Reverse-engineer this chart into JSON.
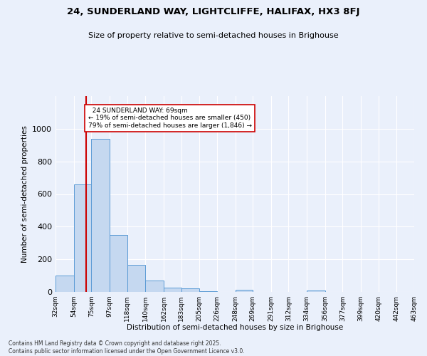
{
  "title": "24, SUNDERLAND WAY, LIGHTCLIFFE, HALIFAX, HX3 8FJ",
  "subtitle": "Size of property relative to semi-detached houses in Brighouse",
  "xlabel": "Distribution of semi-detached houses by size in Brighouse",
  "ylabel": "Number of semi-detached properties",
  "property_label": "24 SUNDERLAND WAY: 69sqm",
  "pct_smaller": 19,
  "pct_larger": 79,
  "n_smaller": 450,
  "n_larger": 1846,
  "bin_edges": [
    32,
    54,
    75,
    97,
    118,
    140,
    162,
    183,
    205,
    226,
    248,
    269,
    291,
    312,
    334,
    356,
    377,
    399,
    420,
    442,
    463
  ],
  "bin_heights": [
    100,
    660,
    940,
    350,
    165,
    70,
    25,
    20,
    5,
    0,
    15,
    0,
    0,
    0,
    10,
    0,
    0,
    0,
    0,
    0
  ],
  "bar_color": "#c5d8f0",
  "bar_edge_color": "#5b9bd5",
  "vline_color": "#cc0000",
  "vline_x": 69,
  "background_color": "#eaf0fb",
  "grid_color": "#ffffff",
  "ylim": [
    0,
    1200
  ],
  "yticks": [
    0,
    200,
    400,
    600,
    800,
    1000,
    1200
  ],
  "tick_labels": [
    "32sqm",
    "54sqm",
    "75sqm",
    "97sqm",
    "118sqm",
    "140sqm",
    "162sqm",
    "183sqm",
    "205sqm",
    "226sqm",
    "248sqm",
    "269sqm",
    "291sqm",
    "312sqm",
    "334sqm",
    "356sqm",
    "377sqm",
    "399sqm",
    "420sqm",
    "442sqm",
    "463sqm"
  ],
  "annotation_box_color": "#ffffff",
  "annotation_box_edge": "#cc0000",
  "footer": "Contains HM Land Registry data © Crown copyright and database right 2025.\nContains public sector information licensed under the Open Government Licence v3.0."
}
